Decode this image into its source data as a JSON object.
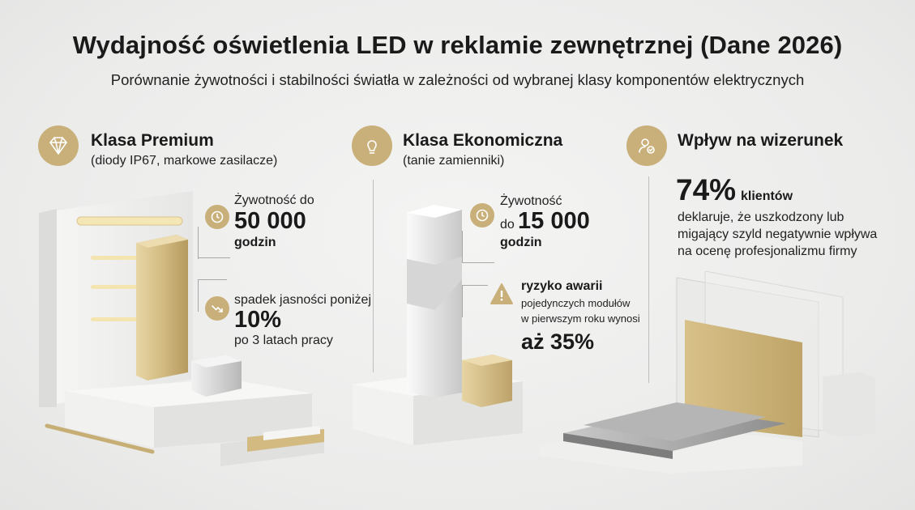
{
  "title": "Wydajność oświetlenia LED w reklamie zewnętrznej (Dane 2026)",
  "subtitle": "Porównanie żywotności i stabilności światła w zależności od wybranej klasy komponentów elektrycznych",
  "colors": {
    "gold": "#c9b07a",
    "text": "#1a1a1a",
    "background": "#ececeb"
  },
  "premium": {
    "icon": "diamond-icon",
    "heading": "Klasa Premium",
    "subheading": "(diody IP67, markowe zasilacze)",
    "lifetime": {
      "icon": "clock-icon",
      "label": "Żywotność do",
      "value": "50 000",
      "unit": "godzin"
    },
    "brightness": {
      "icon": "trend-down-icon",
      "label": "spadek jasności poniżej",
      "value": "10%",
      "note": "po 3 latach pracy"
    }
  },
  "economy": {
    "icon": "lightbulb-icon",
    "heading": "Klasa Ekonomiczna",
    "subheading": "(tanie zamienniki)",
    "lifetime": {
      "icon": "clock-icon",
      "label": "Żywotność",
      "prefix": "do",
      "value": "15 000",
      "unit": "godzin"
    },
    "risk": {
      "icon": "warning-icon",
      "label": "ryzyko awarii",
      "line1": "pojedynczych modułów",
      "line2": "w pierwszym roku wynosi",
      "value": "aż 35%"
    }
  },
  "image": {
    "icon": "user-check-icon",
    "heading": "Wpływ na wizerunek",
    "percent": "74%",
    "percent_label": "klientów",
    "description_lines": [
      "deklaruje, że uszkodzony lub",
      "migający szyld negatywnie wpływa",
      "na ocenę profesjonalizmu firmy"
    ]
  }
}
